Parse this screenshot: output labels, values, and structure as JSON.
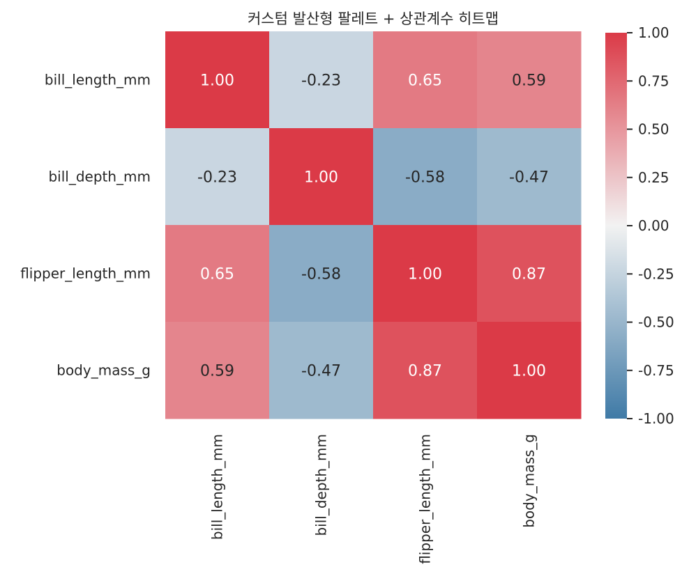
{
  "chart_data": {
    "type": "heatmap",
    "title": "커스텀 발산형 팔레트 + 상관계수 히트맵",
    "xlabel": "",
    "ylabel": "",
    "x_labels": [
      "bill_length_mm",
      "bill_depth_mm",
      "flipper_length_mm",
      "body_mass_g"
    ],
    "y_labels": [
      "bill_length_mm",
      "bill_depth_mm",
      "flipper_length_mm",
      "body_mass_g"
    ],
    "values": [
      [
        1.0,
        -0.23,
        0.65,
        0.59
      ],
      [
        -0.23,
        1.0,
        -0.58,
        -0.47
      ],
      [
        0.65,
        -0.58,
        1.0,
        0.87
      ],
      [
        0.59,
        -0.47,
        0.87,
        1.0
      ]
    ],
    "value_labels": [
      [
        "1.00",
        "-0.23",
        "0.65",
        "0.59"
      ],
      [
        "-0.23",
        "1.00",
        "-0.58",
        "-0.47"
      ],
      [
        "0.65",
        "-0.58",
        "1.00",
        "0.87"
      ],
      [
        "0.59",
        "-0.47",
        "0.87",
        "1.00"
      ]
    ],
    "vmin": -1.0,
    "vmax": 1.0,
    "colormap": {
      "negative": "#3f7aa6",
      "center": "#f2f2f2",
      "positive": "#db3a47"
    },
    "colorbar": {
      "ticks": [
        1.0,
        0.75,
        0.5,
        0.25,
        0.0,
        -0.25,
        -0.5,
        -0.75,
        -1.0
      ],
      "tick_labels": [
        "1.00",
        "0.75",
        "0.50",
        "0.25",
        "0.00",
        "-0.25",
        "-0.50",
        "-0.75",
        "-1.00"
      ]
    },
    "grid": false
  }
}
